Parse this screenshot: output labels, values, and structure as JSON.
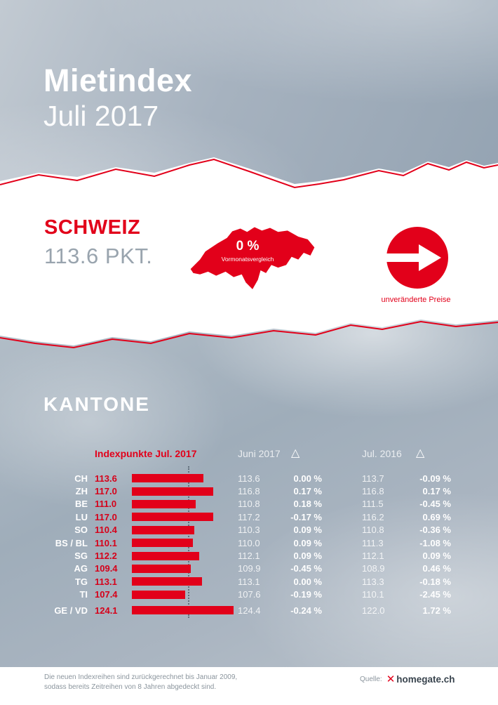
{
  "header": {
    "title": "Mietindex",
    "subtitle": "Juli 2017"
  },
  "schweiz": {
    "label": "SCHWEIZ",
    "points": "113.6 PKT.",
    "map_value": "0 %",
    "map_caption": "Vormonatsvergleich",
    "arrow_caption": "unveränderte Preise"
  },
  "kantone": {
    "title": "KANTONE",
    "col_indexpunkte": "Indexpunkte Jul. 2017",
    "col_juni": "Juni 2017",
    "col_jul2016": "Jul. 2016",
    "delta_symbol": "△"
  },
  "chart_data": {
    "type": "bar",
    "title": "Mietindex Kantone Juli 2017",
    "categories": [
      "CH",
      "ZH",
      "BE",
      "LU",
      "SO",
      "BS / BL",
      "SG",
      "AG",
      "TG",
      "TI",
      "GE / VD"
    ],
    "series": [
      {
        "name": "Indexpunkte Jul. 2017",
        "values": [
          113.6,
          117.0,
          111.0,
          117.0,
          110.4,
          110.1,
          112.2,
          109.4,
          113.1,
          107.4,
          124.1
        ]
      },
      {
        "name": "Juni 2017",
        "values": [
          113.6,
          116.8,
          110.8,
          117.2,
          110.3,
          110.0,
          112.1,
          109.9,
          113.1,
          107.6,
          124.4
        ]
      },
      {
        "name": "Delta Juni 2017",
        "values": [
          "0.00 %",
          "0.17 %",
          "0.18 %",
          "-0.17 %",
          "0.09 %",
          "0.09 %",
          "0.09 %",
          "-0.45 %",
          "0.00 %",
          "-0.19 %",
          "-0.24 %"
        ]
      },
      {
        "name": "Jul. 2016",
        "values": [
          113.7,
          116.8,
          111.5,
          116.2,
          110.8,
          111.3,
          112.1,
          108.9,
          113.3,
          110.1,
          122.0
        ]
      },
      {
        "name": "Delta Jul. 2016",
        "values": [
          "-0.09 %",
          "0.17 %",
          "-0.45 %",
          "0.69 %",
          "-0.36 %",
          "-1.08 %",
          "0.09 %",
          "0.46 %",
          "-0.18 %",
          "-2.45 %",
          "1.72 %"
        ]
      }
    ],
    "xlim": [
      89,
      124.5
    ],
    "annotations": {
      "schweiz_index": 113.6,
      "vormonatsvergleich": "0 %"
    },
    "legend_position": "none",
    "grid": false
  },
  "footer": {
    "note_line1": "Die neuen Indexreihen sind zurückgerechnet bis Januar 2009,",
    "note_line2": "sodass bereits Zeitreihen von 8 Jahren abgedeckt sind.",
    "source_label": "Quelle:",
    "source_name": "homegate.ch"
  },
  "colors": {
    "brand_red": "#e2001a",
    "gray_text": "#99a4ae",
    "bg_gray_blue": "#a6b2bf"
  }
}
